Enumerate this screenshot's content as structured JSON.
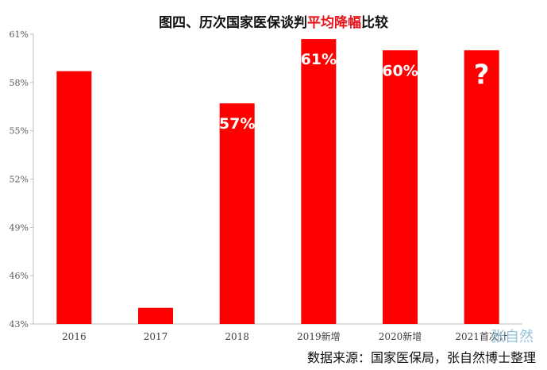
{
  "chart_data": {
    "type": "bar",
    "title_parts": [
      {
        "text": "图四、历次国家医保谈判",
        "highlight": false
      },
      {
        "text": "平均降幅",
        "highlight": true
      },
      {
        "text": "比较",
        "highlight": false
      }
    ],
    "categories": [
      "2016",
      "2017",
      "2018",
      "2019新增",
      "2020新增",
      "2021首次计"
    ],
    "values": [
      58.7,
      44.0,
      56.7,
      60.7,
      60.0,
      60.0
    ],
    "data_labels": [
      "",
      "",
      "57%",
      "61%",
      "60%",
      "?"
    ],
    "y_ticks": [
      "61%",
      "58%",
      "55%",
      "52%",
      "49%",
      "46%",
      "43%"
    ],
    "y_tick_values": [
      61,
      58,
      55,
      52,
      49,
      46,
      43
    ],
    "ylim": [
      43,
      61
    ],
    "bar_color": "#ff0000",
    "grid": false,
    "xlabel": "",
    "ylabel": ""
  },
  "source_text": "数据来源：国家医保局，张自然博士整理",
  "watermark": "张自然",
  "colors": {
    "highlight": "#e8141b",
    "axis": "#bfbfbf",
    "label": "#ffffff"
  }
}
